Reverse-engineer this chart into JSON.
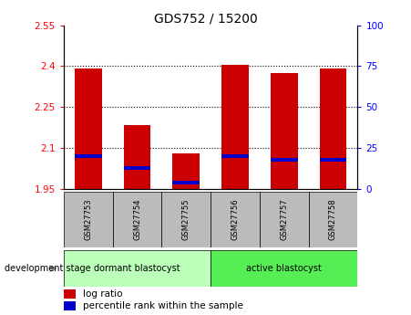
{
  "title": "GDS752 / 15200",
  "samples": [
    "GSM27753",
    "GSM27754",
    "GSM27755",
    "GSM27756",
    "GSM27757",
    "GSM27758"
  ],
  "log_ratio_values": [
    2.39,
    2.185,
    2.08,
    2.405,
    2.375,
    2.39
  ],
  "percentile_values": [
    20,
    13,
    4,
    20,
    18,
    18
  ],
  "baseline": 1.95,
  "ylim_left": [
    1.95,
    2.55
  ],
  "ylim_right": [
    0,
    100
  ],
  "yticks_left": [
    1.95,
    2.1,
    2.25,
    2.4,
    2.55
  ],
  "yticks_right": [
    0,
    25,
    50,
    75,
    100
  ],
  "grid_lines": [
    2.1,
    2.25,
    2.4
  ],
  "bar_color": "#cc0000",
  "percentile_color": "#0000cc",
  "bar_width": 0.55,
  "groups": [
    {
      "label": "dormant blastocyst",
      "color": "#bbffbb",
      "start": 0,
      "end": 3
    },
    {
      "label": "active blastocyst",
      "color": "#55ee55",
      "start": 3,
      "end": 6
    }
  ],
  "group_label": "development stage",
  "sample_label_bg": "#bbbbbb",
  "legend_red_label": "log ratio",
  "legend_blue_label": "percentile rank within the sample"
}
